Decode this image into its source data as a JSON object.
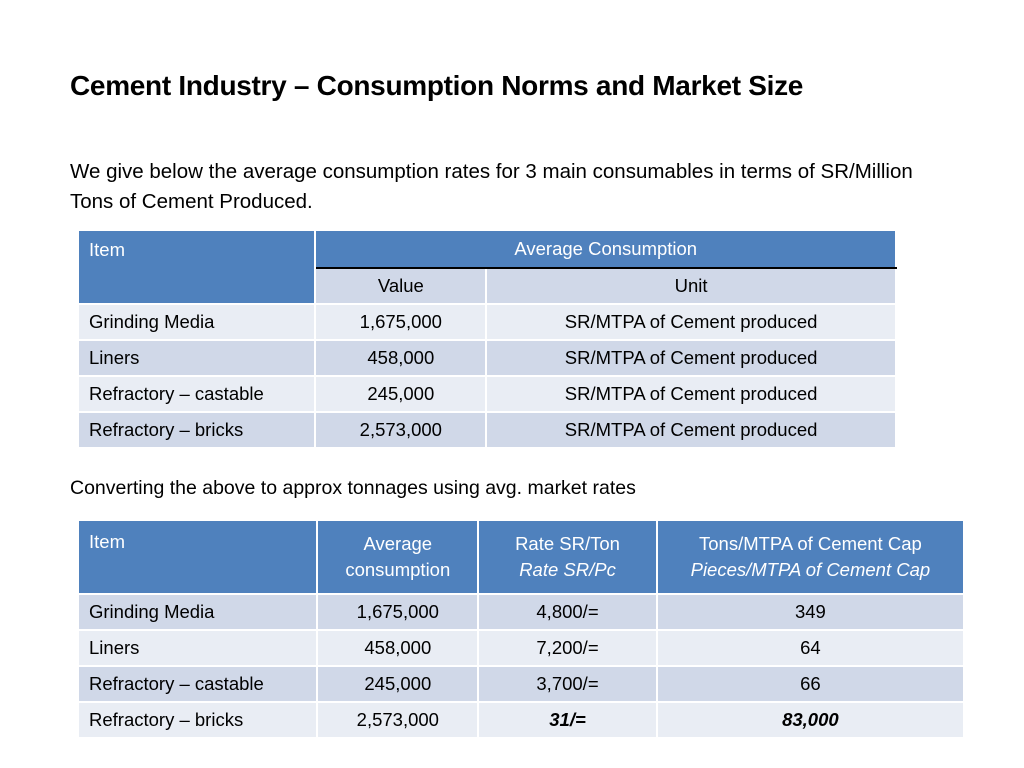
{
  "title": "Cement Industry – Consumption Norms and Market Size",
  "intro": "We give below the average consumption rates for 3 main consumables in terms of SR/Million Tons of Cement Produced.",
  "table1": {
    "header_item": "Item",
    "header_group": "Average Consumption",
    "sub_value": "Value",
    "sub_unit": "Unit",
    "rows": [
      {
        "item": "Grinding Media",
        "value": "1,675,000",
        "unit": "SR/MTPA of Cement produced"
      },
      {
        "item": "Liners",
        "value": "458,000",
        "unit": "SR/MTPA of Cement produced"
      },
      {
        "item": "Refractory – castable",
        "value": "245,000",
        "unit": "SR/MTPA of Cement produced"
      },
      {
        "item": "Refractory – bricks",
        "value": "2,573,000",
        "unit": "SR/MTPA of Cement produced"
      }
    ]
  },
  "caption": "Converting the above to approx tonnages using avg. market rates",
  "table2": {
    "headers": {
      "item": "Item",
      "avg_line1": "Average",
      "avg_line2": "consumption",
      "rate_line1": "Rate SR/Ton",
      "rate_line2": "Rate SR/Pc",
      "tons_line1": "Tons/MTPA of Cement Cap",
      "tons_line2": "Pieces/MTPA of Cement Cap"
    },
    "rows": [
      {
        "item": "Grinding Media",
        "avg": "1,675,000",
        "rate": "4,800/=",
        "tons": "349"
      },
      {
        "item": "Liners",
        "avg": "458,000",
        "rate": "7,200/=",
        "tons": "64"
      },
      {
        "item": "Refractory – castable",
        "avg": "245,000",
        "rate": "3,700/=",
        "tons": "66"
      },
      {
        "item": "Refractory – bricks",
        "avg": "2,573,000",
        "rate": "31/=",
        "tons": "83,000"
      }
    ]
  },
  "colors": {
    "header_bg": "#4f81bd",
    "row_odd_bg": "#d0d8e8",
    "row_even_bg": "#e9edf4"
  }
}
